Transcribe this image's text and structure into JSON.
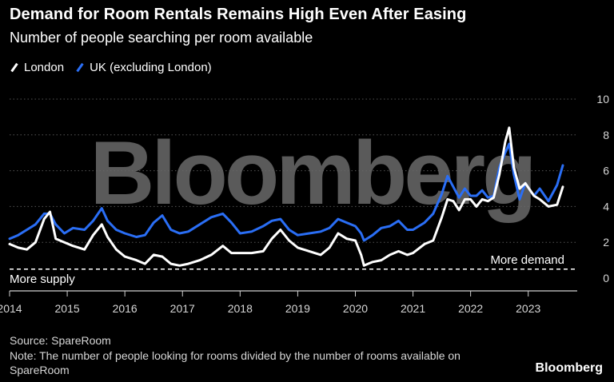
{
  "title": "Demand for Room Rentals Remains High Even After Easing",
  "subtitle": "Number of people searching per room available",
  "watermark": "Bloomberg",
  "source": "Source: SpareRoom",
  "note": "Note: The number of people looking for rooms divided by the number of rooms available on SpareRoom",
  "brand": "Bloomberg",
  "colors": {
    "london": "#ffffff",
    "uk": "#2a6ef5",
    "background": "#000000",
    "grid": "#555555"
  },
  "chart_data": {
    "type": "line",
    "title": "Demand for Room Rentals Remains High Even After Easing",
    "subtitle": "Number of people searching per room available",
    "ylim": [
      0,
      10
    ],
    "xlim": [
      2014.0,
      2023.85
    ],
    "yticks": [
      0,
      2,
      4,
      6,
      8,
      10
    ],
    "xticks": [
      "2014",
      "2015",
      "2016",
      "2017",
      "2018",
      "2019",
      "2020",
      "2021",
      "2022",
      "2023"
    ],
    "grid": true,
    "legend_position": "top-left",
    "threshold": {
      "value": 0.5,
      "label_above": "More demand",
      "label_below": "More supply"
    },
    "series": [
      {
        "name": "London",
        "x": [
          2014.0,
          2014.15,
          2014.3,
          2014.45,
          2014.6,
          2014.7,
          2014.8,
          2014.95,
          2015.1,
          2015.3,
          2015.45,
          2015.6,
          2015.7,
          2015.85,
          2016.0,
          2016.2,
          2016.35,
          2016.5,
          2016.65,
          2016.8,
          2016.95,
          2017.1,
          2017.3,
          2017.5,
          2017.7,
          2017.85,
          2018.0,
          2018.2,
          2018.4,
          2018.55,
          2018.7,
          2018.85,
          2019.0,
          2019.2,
          2019.4,
          2019.55,
          2019.7,
          2019.85,
          2020.0,
          2020.1,
          2020.15,
          2020.3,
          2020.45,
          2020.6,
          2020.75,
          2020.9,
          2021.0,
          2021.2,
          2021.35,
          2021.5,
          2021.6,
          2021.7,
          2021.8,
          2021.9,
          2022.0,
          2022.1,
          2022.2,
          2022.3,
          2022.4,
          2022.5,
          2022.6,
          2022.67,
          2022.75,
          2022.85,
          2022.95,
          2023.1,
          2023.2,
          2023.35,
          2023.5,
          2023.6
        ],
        "values": [
          1.9,
          1.7,
          1.6,
          2.0,
          3.3,
          3.7,
          2.2,
          2.0,
          1.8,
          1.6,
          2.4,
          3.0,
          2.3,
          1.6,
          1.2,
          1.0,
          0.8,
          1.3,
          1.2,
          0.8,
          0.7,
          0.8,
          1.0,
          1.3,
          1.8,
          1.4,
          1.4,
          1.4,
          1.5,
          2.2,
          2.7,
          2.1,
          1.7,
          1.5,
          1.3,
          1.7,
          2.5,
          2.2,
          2.1,
          1.3,
          0.7,
          0.9,
          1.0,
          1.3,
          1.5,
          1.3,
          1.4,
          1.9,
          2.1,
          3.4,
          4.4,
          4.3,
          3.8,
          4.4,
          4.4,
          4.0,
          4.4,
          4.3,
          4.5,
          5.8,
          7.6,
          8.4,
          6.2,
          5.0,
          5.3,
          4.6,
          4.4,
          4.0,
          4.1,
          5.1
        ]
      },
      {
        "name": "UK (excluding London)",
        "x": [
          2014.0,
          2014.15,
          2014.3,
          2014.45,
          2014.6,
          2014.7,
          2014.8,
          2014.95,
          2015.1,
          2015.3,
          2015.45,
          2015.6,
          2015.7,
          2015.85,
          2016.0,
          2016.2,
          2016.35,
          2016.5,
          2016.65,
          2016.8,
          2016.95,
          2017.1,
          2017.3,
          2017.5,
          2017.7,
          2017.85,
          2018.0,
          2018.2,
          2018.4,
          2018.55,
          2018.7,
          2018.85,
          2019.0,
          2019.2,
          2019.4,
          2019.55,
          2019.7,
          2019.85,
          2020.0,
          2020.1,
          2020.15,
          2020.3,
          2020.45,
          2020.6,
          2020.75,
          2020.9,
          2021.0,
          2021.2,
          2021.35,
          2021.5,
          2021.6,
          2021.7,
          2021.8,
          2021.9,
          2022.0,
          2022.1,
          2022.2,
          2022.3,
          2022.4,
          2022.5,
          2022.6,
          2022.67,
          2022.75,
          2022.85,
          2022.95,
          2023.1,
          2023.2,
          2023.35,
          2023.5,
          2023.6
        ],
        "values": [
          2.2,
          2.4,
          2.7,
          3.0,
          3.6,
          3.6,
          3.0,
          2.5,
          2.8,
          2.7,
          3.2,
          3.9,
          3.2,
          2.7,
          2.5,
          2.3,
          2.4,
          3.1,
          3.5,
          2.7,
          2.5,
          2.6,
          3.0,
          3.4,
          3.6,
          3.1,
          2.5,
          2.6,
          2.9,
          3.2,
          3.3,
          2.7,
          2.4,
          2.5,
          2.6,
          2.8,
          3.3,
          3.1,
          2.9,
          2.5,
          2.1,
          2.4,
          2.8,
          2.9,
          3.2,
          2.7,
          2.7,
          3.1,
          3.6,
          4.7,
          5.7,
          5.1,
          4.5,
          5.0,
          4.6,
          4.6,
          4.9,
          4.5,
          4.6,
          6.2,
          7.0,
          7.5,
          5.8,
          4.4,
          5.3,
          4.6,
          5.0,
          4.3,
          5.2,
          6.3
        ]
      }
    ]
  }
}
